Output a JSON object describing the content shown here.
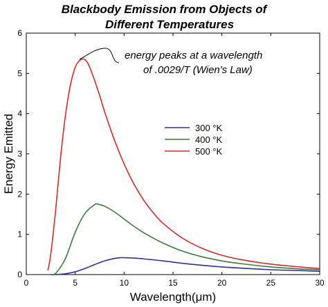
{
  "chart_data": {
    "type": "line",
    "title_lines": [
      "Blackbody Emission from Objects of",
      "Different Temperatures"
    ],
    "xlabel": "Wavelength(μm)",
    "ylabel": "Energy Emitted",
    "xlim": [
      0,
      30
    ],
    "ylim": [
      0,
      6
    ],
    "x_ticks": [
      "0",
      "5",
      "10",
      "15",
      "20",
      "25",
      "30"
    ],
    "y_ticks": [
      "0",
      "1",
      "2",
      "3",
      "4",
      "5",
      "6"
    ],
    "grid": false,
    "legend_placement": "center-right",
    "annotation": {
      "lines": [
        "energy peaks at a wavelength",
        "of .0029/T (Wien's Law)"
      ],
      "point": [
        5.9,
        5.35
      ]
    },
    "series": [
      {
        "name": "300 °K",
        "color": "#2b2f9e",
        "x": [
          2.5,
          3,
          4,
          5,
          6,
          7,
          8,
          9,
          9.7,
          10,
          11,
          12,
          14,
          16,
          18,
          20,
          22,
          25,
          28,
          30
        ],
        "y": [
          0.0,
          0.0,
          0.02,
          0.07,
          0.15,
          0.25,
          0.34,
          0.4,
          0.42,
          0.42,
          0.41,
          0.39,
          0.34,
          0.28,
          0.23,
          0.19,
          0.16,
          0.12,
          0.1,
          0.08
        ]
      },
      {
        "name": "400 °K",
        "color": "#3c7a3c",
        "x": [
          2.5,
          3,
          4,
          5,
          6,
          7,
          7.3,
          8,
          9,
          10,
          11,
          12,
          14,
          16,
          18,
          20,
          22,
          25,
          28,
          30
        ],
        "y": [
          0.0,
          0.03,
          0.4,
          1.05,
          1.52,
          1.74,
          1.75,
          1.7,
          1.56,
          1.38,
          1.2,
          1.04,
          0.78,
          0.58,
          0.44,
          0.34,
          0.27,
          0.19,
          0.14,
          0.12
        ]
      },
      {
        "name": "500 °K",
        "color": "#d42a2a",
        "x": [
          2.2,
          2.5,
          3,
          3.5,
          4,
          4.5,
          5,
          5.5,
          5.9,
          6.3,
          6.8,
          7.5,
          8,
          9,
          10,
          11,
          12,
          13,
          14,
          16,
          18,
          20,
          22,
          25,
          28,
          30
        ],
        "y": [
          0.1,
          0.5,
          1.6,
          2.9,
          3.95,
          4.7,
          5.15,
          5.33,
          5.35,
          5.25,
          4.95,
          4.45,
          4.05,
          3.35,
          2.75,
          2.25,
          1.85,
          1.53,
          1.27,
          0.9,
          0.65,
          0.48,
          0.37,
          0.26,
          0.19,
          0.15
        ]
      }
    ]
  }
}
